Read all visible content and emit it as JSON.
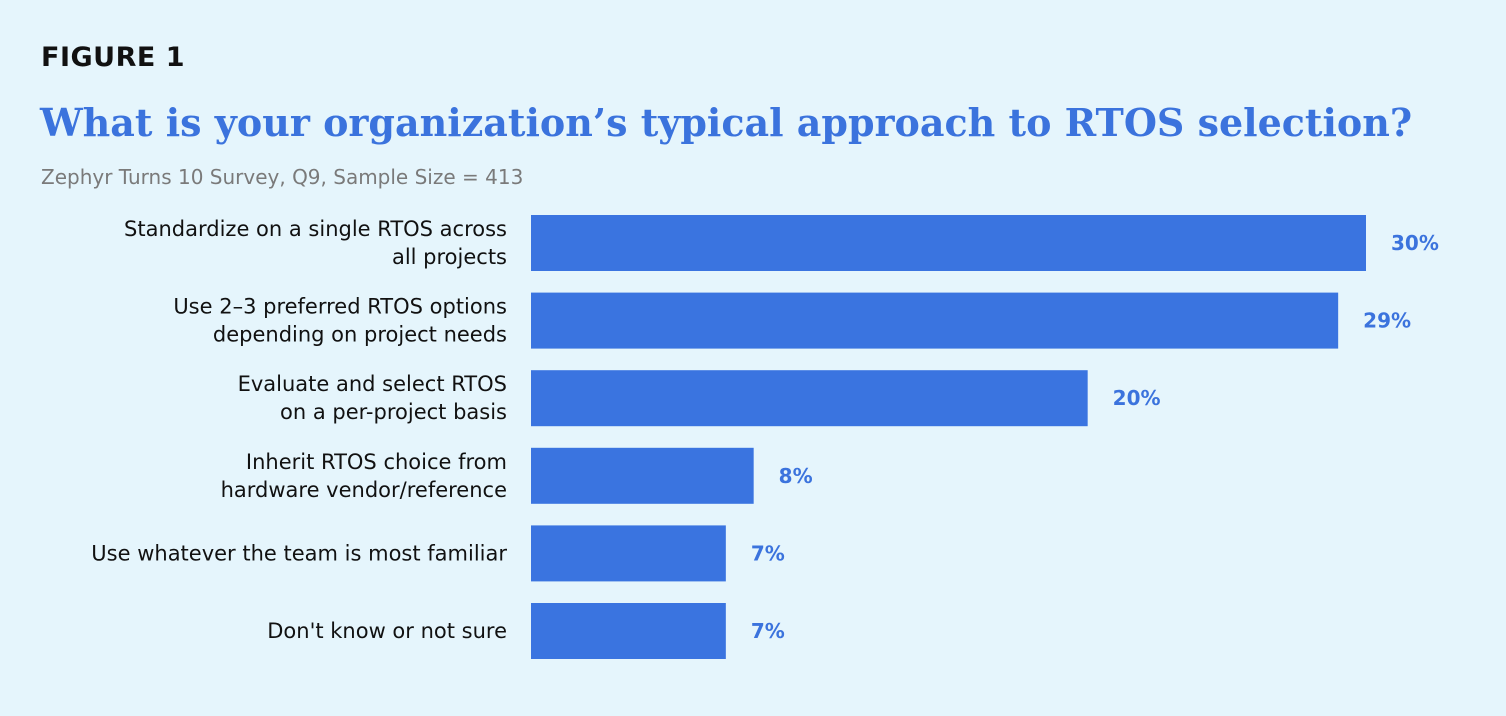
{
  "figure_label": "FIGURE 1",
  "colors": {
    "background": "#e5f5fc",
    "bar": "#3a74e0",
    "title": "#3b73dd",
    "value_label": "#3b73dd",
    "subtitle": "#7a7a7a",
    "category_text": "#111111"
  },
  "chart_data": {
    "type": "bar",
    "orientation": "horizontal",
    "title": "What is your organization’s typical approach to RTOS selection?",
    "subtitle": "Zephyr Turns 10 Survey, Q9, Sample Size = 413",
    "categories": [
      [
        "Standardize on a single RTOS across",
        "all projects"
      ],
      [
        "Use 2–3 preferred RTOS options",
        "depending on project needs"
      ],
      [
        "Evaluate and select RTOS",
        "on a per-project basis"
      ],
      [
        "Inherit RTOS choice from",
        "hardware vendor/reference"
      ],
      [
        "Use whatever the team is most familiar"
      ],
      [
        "Don't know or not sure"
      ]
    ],
    "values": [
      30,
      29,
      20,
      8,
      7,
      7
    ],
    "value_labels": [
      "30%",
      "29%",
      "20%",
      "8%",
      "7%",
      "7%"
    ],
    "unit": "%",
    "xlim": [
      0,
      30
    ],
    "grid": false,
    "legend": "none"
  }
}
